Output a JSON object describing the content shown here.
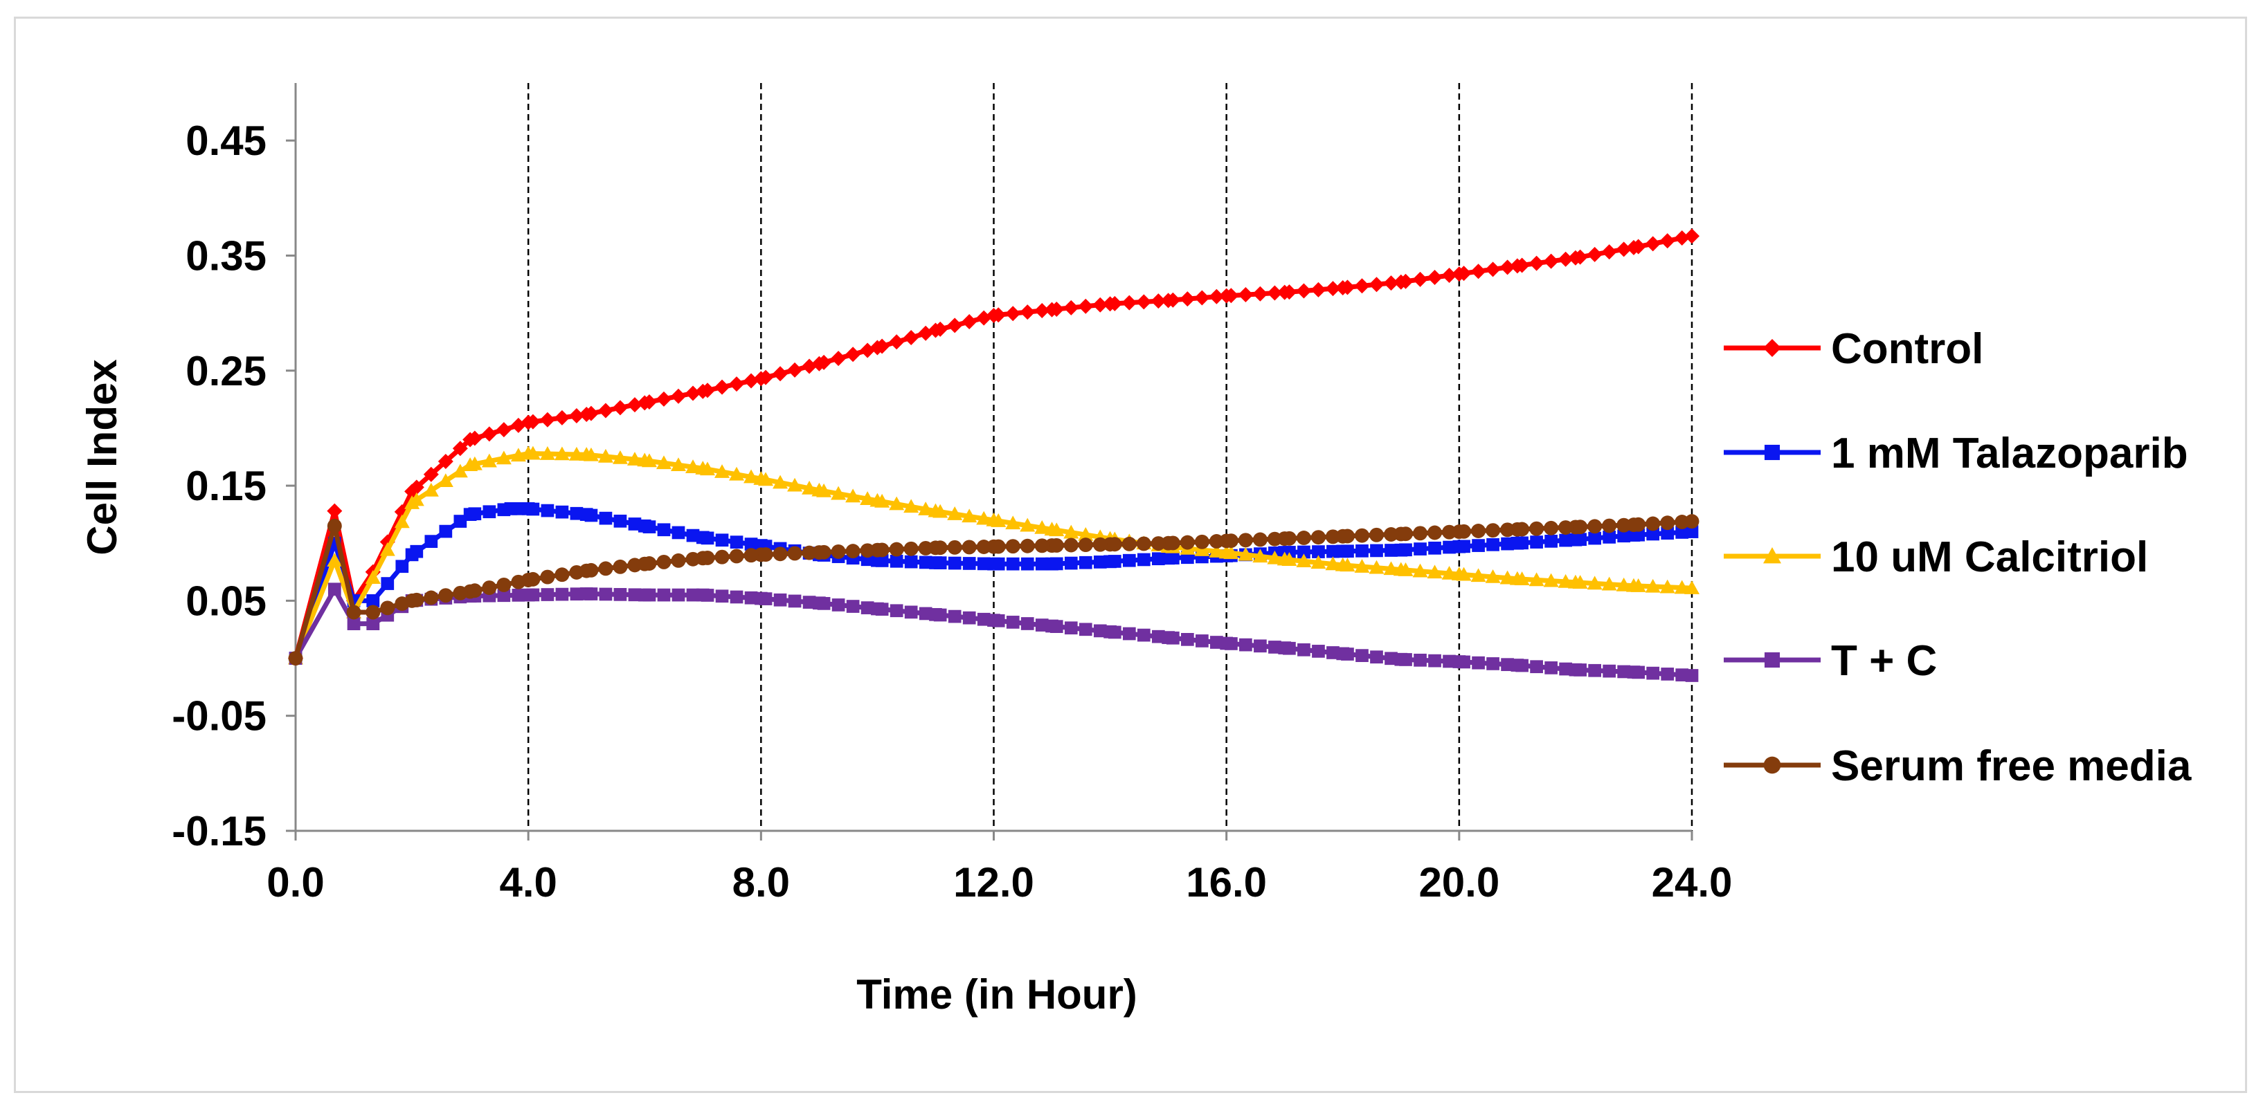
{
  "chart_data": {
    "type": "line",
    "title": "",
    "xlabel": "Time (in Hour)",
    "ylabel": "Cell Index",
    "xlim": [
      0,
      24
    ],
    "ylim": [
      -0.15,
      0.5
    ],
    "x_ticks": [
      "0.0",
      "4.0",
      "8.0",
      "12.0",
      "16.0",
      "20.0",
      "24.0"
    ],
    "y_ticks": [
      "0.45",
      "0.35",
      "0.25",
      "0.15",
      "0.05",
      "-0.05",
      "-0.15"
    ],
    "vertical_gridlines": [
      4,
      8,
      12,
      16,
      20,
      24
    ],
    "legend_position": "right",
    "series": [
      {
        "name": "Control",
        "color": "#ff0000",
        "marker": "diamond",
        "x": [
          0,
          0.67,
          1.0,
          1.33,
          2.0,
          3.0,
          4.0,
          5.0,
          6.0,
          7.0,
          8.0,
          9.0,
          10.0,
          11.0,
          12.0,
          13.0,
          14.0,
          15.0,
          16.0,
          17.0,
          18.0,
          19.0,
          20.0,
          21.0,
          22.0,
          23.0,
          24.0
        ],
        "y": [
          0.0,
          0.128,
          0.05,
          0.075,
          0.145,
          0.19,
          0.205,
          0.212,
          0.222,
          0.232,
          0.243,
          0.256,
          0.27,
          0.285,
          0.298,
          0.303,
          0.308,
          0.311,
          0.315,
          0.318,
          0.322,
          0.327,
          0.334,
          0.341,
          0.348,
          0.357,
          0.367
        ]
      },
      {
        "name": "1 mM Talazoparib",
        "color": "#0a16f0",
        "marker": "square",
        "x": [
          0,
          0.67,
          1.0,
          1.33,
          2.0,
          3.0,
          3.7,
          4.0,
          5.0,
          6.0,
          7.0,
          8.0,
          9.0,
          10.0,
          11.0,
          12.0,
          13.0,
          14.0,
          15.0,
          16.0,
          17.0,
          18.0,
          19.0,
          20.0,
          21.0,
          22.0,
          23.0,
          24.0
        ],
        "y": [
          0.0,
          0.1,
          0.05,
          0.05,
          0.09,
          0.125,
          0.13,
          0.13,
          0.125,
          0.115,
          0.105,
          0.098,
          0.09,
          0.085,
          0.083,
          0.082,
          0.082,
          0.084,
          0.087,
          0.089,
          0.092,
          0.093,
          0.094,
          0.097,
          0.1,
          0.103,
          0.107,
          0.11
        ]
      },
      {
        "name": "10 uM Calcitriol",
        "color": "#ffc000",
        "marker": "triangle",
        "x": [
          0,
          0.67,
          1.0,
          1.33,
          2.0,
          3.0,
          4.0,
          5.0,
          6.0,
          7.0,
          8.0,
          9.0,
          10.0,
          11.0,
          12.0,
          13.0,
          14.0,
          15.0,
          16.0,
          17.0,
          18.0,
          19.0,
          20.0,
          21.0,
          22.0,
          23.0,
          24.0
        ],
        "y": [
          0.0,
          0.085,
          0.04,
          0.07,
          0.135,
          0.168,
          0.178,
          0.177,
          0.172,
          0.165,
          0.156,
          0.146,
          0.137,
          0.128,
          0.12,
          0.112,
          0.104,
          0.097,
          0.092,
          0.086,
          0.081,
          0.077,
          0.073,
          0.069,
          0.066,
          0.063,
          0.061
        ]
      },
      {
        "name": "T + C",
        "color": "#7030a0",
        "marker": "square",
        "x": [
          0,
          0.67,
          1.0,
          1.33,
          2.0,
          3.0,
          4.0,
          5.0,
          6.0,
          7.0,
          8.0,
          9.0,
          10.0,
          11.0,
          12.0,
          13.0,
          14.0,
          15.0,
          16.0,
          17.0,
          18.0,
          19.0,
          20.0,
          21.0,
          22.0,
          23.0,
          24.0
        ],
        "y": [
          0.0,
          0.06,
          0.03,
          0.03,
          0.05,
          0.054,
          0.055,
          0.056,
          0.055,
          0.055,
          0.052,
          0.048,
          0.043,
          0.038,
          0.033,
          0.028,
          0.023,
          0.018,
          0.013,
          0.009,
          0.004,
          -0.001,
          -0.003,
          -0.006,
          -0.01,
          -0.012,
          -0.015
        ]
      },
      {
        "name": "Serum free media",
        "color": "#843c0c",
        "marker": "circle",
        "x": [
          0,
          0.67,
          1.0,
          1.33,
          2.0,
          3.0,
          4.0,
          5.0,
          6.0,
          7.0,
          8.0,
          9.0,
          10.0,
          11.0,
          12.0,
          13.0,
          14.0,
          15.0,
          16.0,
          17.0,
          18.0,
          19.0,
          20.0,
          21.0,
          22.0,
          23.0,
          24.0
        ],
        "y": [
          0.0,
          0.115,
          0.04,
          0.04,
          0.05,
          0.058,
          0.068,
          0.076,
          0.082,
          0.087,
          0.09,
          0.092,
          0.094,
          0.096,
          0.097,
          0.098,
          0.099,
          0.1,
          0.102,
          0.104,
          0.106,
          0.108,
          0.11,
          0.112,
          0.114,
          0.116,
          0.119
        ]
      }
    ]
  }
}
